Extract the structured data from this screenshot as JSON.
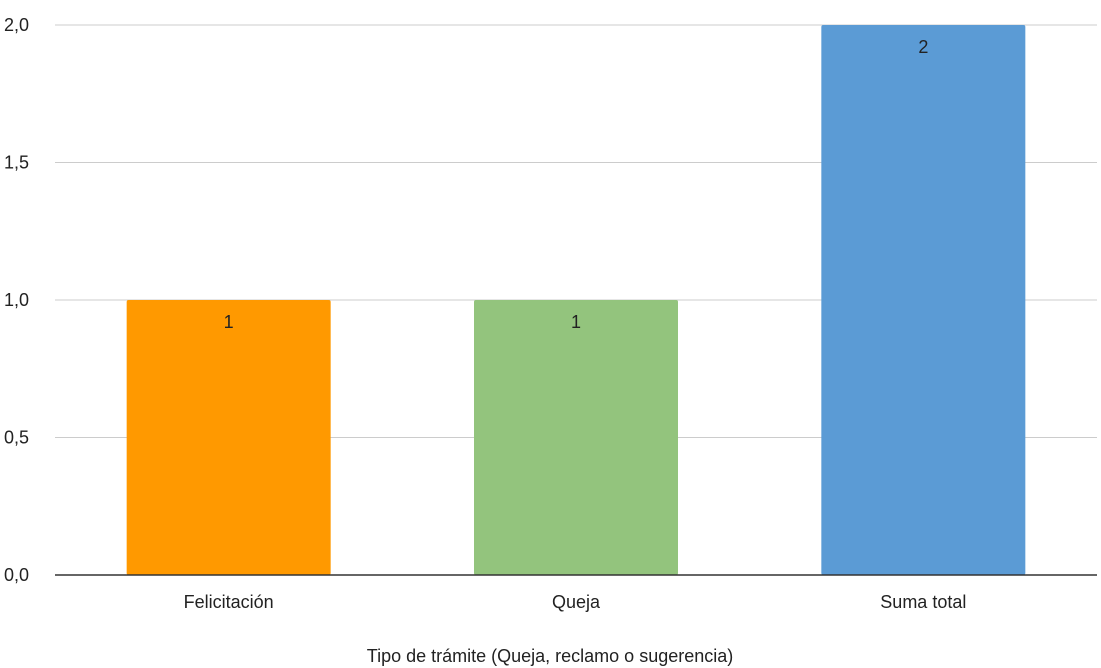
{
  "chart_data": {
    "type": "bar",
    "title": "",
    "xlabel": "Tipo de trámite (Queja, reclamo o sugerencia)",
    "ylabel": "",
    "categories": [
      "Felicitación",
      "Queja",
      "Suma total"
    ],
    "values": [
      1,
      1,
      2
    ],
    "data_labels": [
      "1",
      "1",
      "2"
    ],
    "colors": [
      "#ff9900",
      "#93c47d",
      "#5b9bd5"
    ],
    "ylim": [
      0,
      2
    ],
    "yticks": [
      0,
      0.5,
      1,
      1.5,
      2
    ],
    "ytick_labels": [
      "0,0",
      "0,5",
      "1,0",
      "1,5",
      "2,0"
    ],
    "grid": true,
    "legend": "none"
  }
}
